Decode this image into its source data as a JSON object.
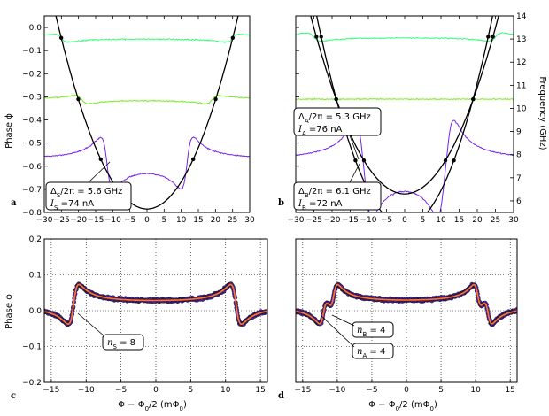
{
  "chart_data": [
    {
      "panel_label": "a",
      "type": "line",
      "xlim": [
        -30,
        30
      ],
      "ylim": [
        -0.8,
        0.05
      ],
      "y2lim": [
        5.5,
        14
      ],
      "ylabel": "Phase ϕ",
      "xticks": [
        "−30",
        "−25",
        "−20",
        "−15",
        "−10",
        "−5",
        "0",
        "5",
        "10",
        "15",
        "20",
        "25",
        "30"
      ],
      "yticks": [
        "0.0",
        "−0.1",
        "−0.2",
        "−0.3",
        "−0.4",
        "−0.5",
        "−0.6",
        "−0.7",
        "−0.8"
      ],
      "series": [
        {
          "color": "#33ff77",
          "baseline": -0.045,
          "resonances": [
            -25,
            25
          ]
        },
        {
          "color": "#77ee22",
          "baseline": -0.31,
          "resonances": [
            -19,
            19
          ]
        },
        {
          "color": "#7722ee",
          "baseline": -0.57,
          "resonances": [
            -11.7,
            11.7
          ]
        }
      ],
      "parabola": {
        "vertex_x": 0,
        "vertex_y": -0.785,
        "coeff": 0.00118
      },
      "annotations": [
        {
          "line1": "ΔS/2π = 5.6 GHz",
          "line2": "IS =74 nA",
          "delta": "Δ",
          "sub": "S",
          "rest1": "/2π = 5.6 GHz",
          "i": "I",
          "rest2": " =74 nA"
        }
      ]
    },
    {
      "panel_label": "b",
      "type": "line",
      "xlim": [
        -30,
        30
      ],
      "ylim": [
        -0.8,
        0.05
      ],
      "y2lim": [
        5.5,
        14
      ],
      "y2label": "Frequency (GHz)",
      "xticks": [
        "−30",
        "−25",
        "−20",
        "−15",
        "−10",
        "−5",
        "0",
        "5",
        "10",
        "15",
        "20",
        "25",
        "30"
      ],
      "y2ticks": [
        "6",
        "7",
        "8",
        "9",
        "10",
        "11",
        "12",
        "13",
        "14"
      ],
      "series": [
        {
          "color": "#33ff77",
          "baseline": -0.04,
          "resonances": [
            -25,
            25
          ]
        },
        {
          "color": "#77ee22",
          "baseline": -0.31,
          "resonances": []
        },
        {
          "color": "#7722ee",
          "baseline": -0.575,
          "resonances": [
            -12,
            -10.5,
            10.5,
            12
          ]
        }
      ],
      "parabolas": [
        {
          "vertex_x": 0,
          "vertex_y": -0.72,
          "coeff": 0.00115
        },
        {
          "vertex_x": 0,
          "vertex_y": -0.86,
          "coeff": 0.00155
        }
      ],
      "annotations": [
        {
          "delta": "Δ",
          "sub": "A",
          "rest1": "/2π = 5.3 GHz",
          "i": "I",
          "rest2": " =76 nA"
        },
        {
          "delta": "Δ",
          "sub": "B",
          "rest1": "/2π = 6.1 GHz",
          "i": "I",
          "rest2": " =72 nA"
        }
      ]
    },
    {
      "panel_label": "c",
      "type": "scatter",
      "xlim": [
        -16,
        16
      ],
      "ylim": [
        -0.2,
        0.2
      ],
      "ylabel": "Phase ϕ",
      "xlabel": "Φ − Φ0/2 (mΦ0)",
      "xticks": [
        "−15",
        "−10",
        "−5",
        "0",
        "5",
        "10",
        "15"
      ],
      "yticks": [
        "0.2",
        "0.1",
        "0.0",
        "−0.1",
        "−0.2"
      ],
      "resonances": [
        -11.8,
        11.5
      ],
      "annotation": {
        "n": "n",
        "sub": "S",
        "rest": " = 8"
      }
    },
    {
      "panel_label": "d",
      "type": "scatter",
      "xlim": [
        -16,
        16
      ],
      "ylim": [
        -0.2,
        0.2
      ],
      "xlabel": "Φ − Φ0/2 (mΦ0)",
      "xticks": [
        "−15",
        "−10",
        "−5",
        "0",
        "5",
        "10",
        "15"
      ],
      "resonances": [
        -12,
        -10.5,
        10.3,
        11.8
      ],
      "annotations": [
        {
          "n": "n",
          "sub": "B",
          "rest": " = 4"
        },
        {
          "n": "n",
          "sub": "A",
          "rest": " = 4"
        }
      ]
    }
  ],
  "text": {
    "ylabel_phase": "Phase ϕ",
    "ylabel_freq": "Frequency (GHz)",
    "xlabel_main": "Φ − Φ",
    "xlabel_sub": "0",
    "xlabel_tail": "/2 (mΦ",
    "xlabel_end": ")"
  }
}
